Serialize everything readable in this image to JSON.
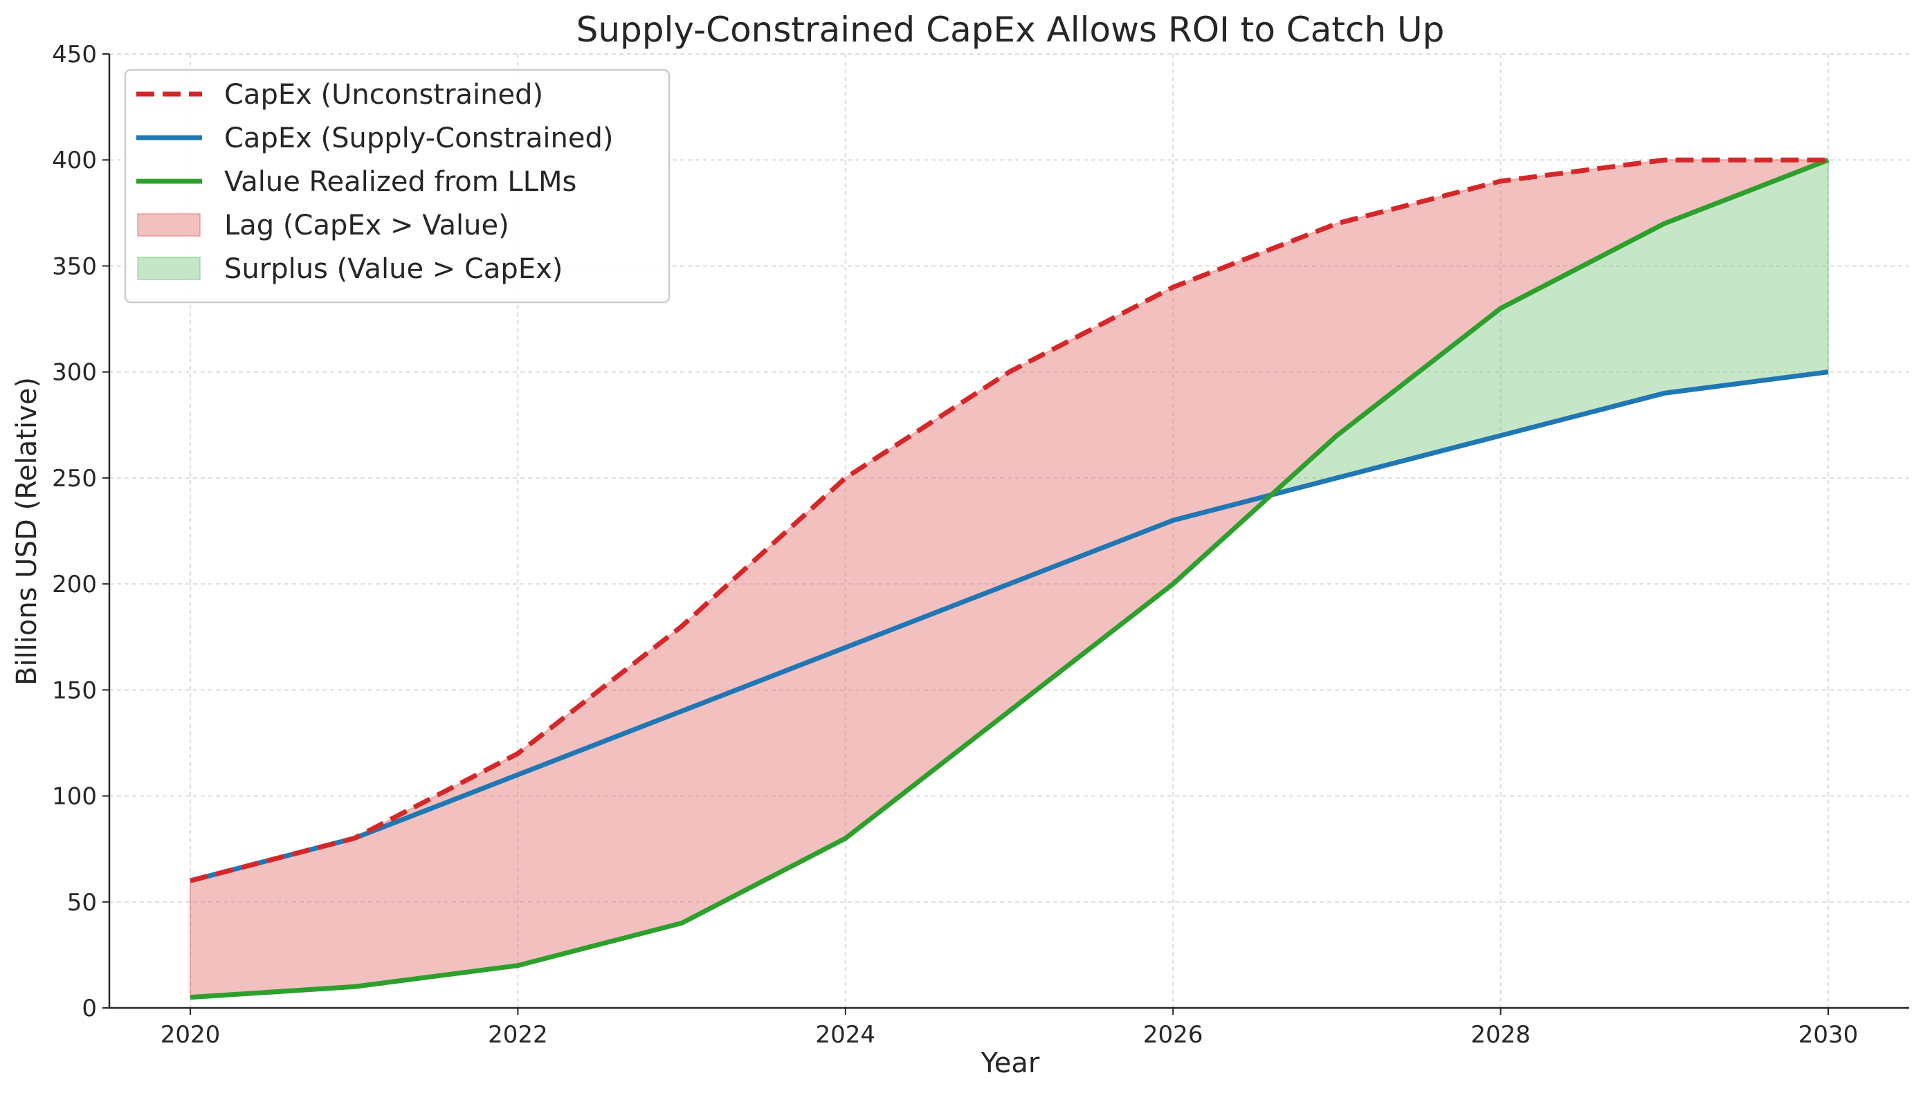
{
  "chart_data": {
    "type": "line",
    "title": "Supply-Constrained CapEx Allows ROI to Catch Up",
    "xlabel": "Year",
    "ylabel": "Billions USD (Relative)",
    "x": [
      2020,
      2021,
      2022,
      2023,
      2024,
      2025,
      2026,
      2027,
      2028,
      2029,
      2030
    ],
    "xlim": [
      2019.5,
      2030.5
    ],
    "ylim": [
      0,
      450
    ],
    "xticks": [
      2020,
      2022,
      2024,
      2026,
      2028,
      2030
    ],
    "yticks": [
      0,
      50,
      100,
      150,
      200,
      250,
      300,
      350,
      400,
      450
    ],
    "grid": true,
    "legend_position": "top-left",
    "series": [
      {
        "name": "CapEx (Unconstrained)",
        "color": "#d62728",
        "style": "dashed",
        "values": [
          60,
          80,
          120,
          180,
          250,
          300,
          340,
          370,
          390,
          400,
          400
        ]
      },
      {
        "name": "CapEx (Supply-Constrained)",
        "color": "#1f77b4",
        "style": "solid",
        "values": [
          60,
          80,
          110,
          140,
          170,
          200,
          230,
          250,
          270,
          290,
          300
        ]
      },
      {
        "name": "Value Realized from LLMs",
        "color": "#2ca02c",
        "style": "solid",
        "values": [
          5,
          10,
          20,
          40,
          80,
          140,
          200,
          270,
          330,
          370,
          400
        ]
      }
    ],
    "fills": [
      {
        "name": "Lag (CapEx > Value)",
        "color": "#e57373",
        "between": [
          "CapEx (Unconstrained)",
          "Value Realized from LLMs"
        ]
      },
      {
        "name": "Surplus (Value > CapEx)",
        "color": "#81c784",
        "between": [
          "Value Realized from LLMs",
          "CapEx (Supply-Constrained)"
        ]
      }
    ]
  }
}
